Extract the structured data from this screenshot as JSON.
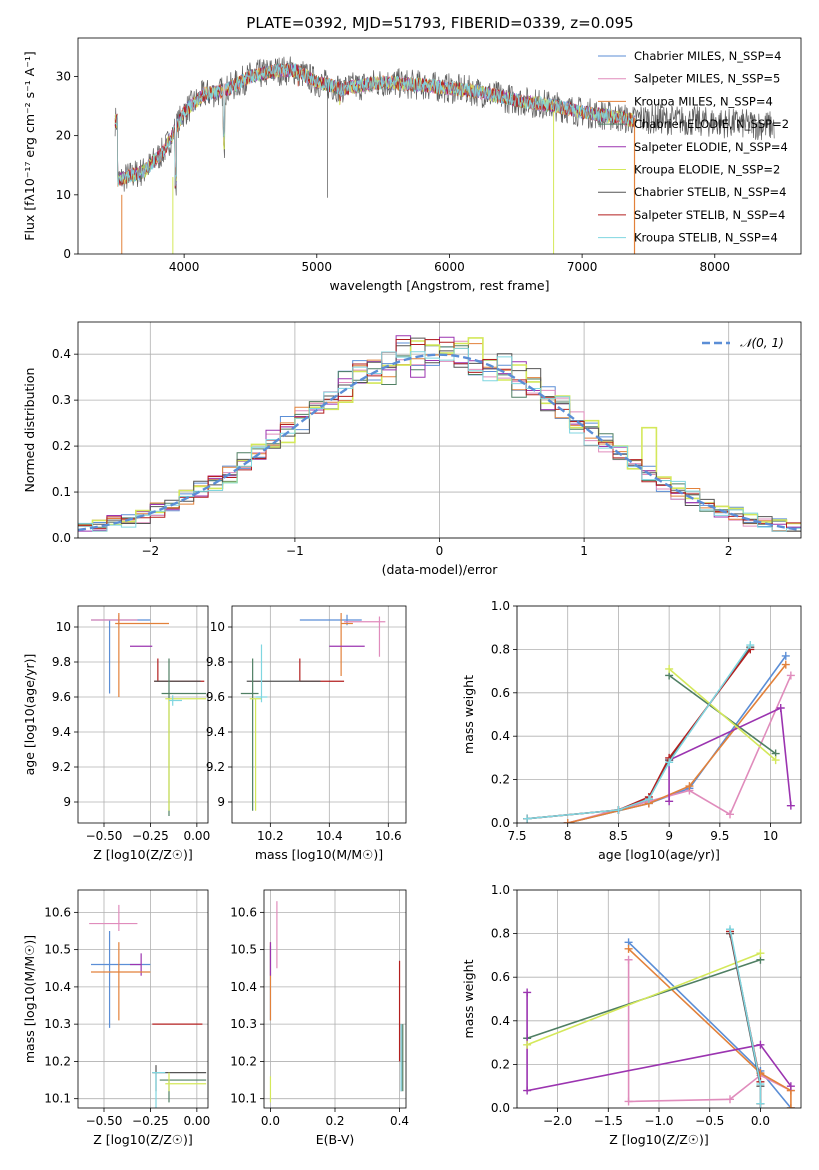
{
  "title": "PLATE=0392, MJD=51793, FIBERID=0339, z=0.095",
  "colors": {
    "Chabrier MILES": "#5b8ed6",
    "Salpeter MILES": "#e08cbc",
    "Kroupa MILES": "#e2813a",
    "Chabrier ELODIE": "#4f7f63",
    "Salpeter ELODIE": "#9b34b0",
    "Kroupa ELODIE": "#d4e85a",
    "Chabrier STELIB": "#555555",
    "Salpeter STELIB": "#b31f1f",
    "Kroupa STELIB": "#7fd6e0"
  },
  "chart_data": [
    {
      "type": "line",
      "title": "PLATE=0392, MJD=51793, FIBERID=0339, z=0.095",
      "xlabel": "wavelength [Angstrom, rest frame]",
      "ylabel": "Flux [fλ10⁻¹⁷ erg cm⁻² s⁻¹ A⁻¹]",
      "xlim": [
        3200,
        8650
      ],
      "ylim": [
        0,
        36.5
      ],
      "xticks": [
        4000,
        5000,
        6000,
        7000,
        8000
      ],
      "yticks": [
        0,
        10,
        20,
        30
      ],
      "legend_position": "top-right",
      "legend": [
        "Chabrier MILES, N_SSP=4",
        "Salpeter MILES, N_SSP=5",
        "Kroupa MILES, N_SSP=4",
        "Chabrier ELODIE, N_SSP=2",
        "Salpeter ELODIE, N_SSP=4",
        "Kroupa ELODIE, N_SSP=2",
        "Chabrier STELIB, N_SSP=4",
        "Salpeter STELIB, N_SSP=4",
        "Kroupa STELIB, N_SSP=4"
      ],
      "continuum": [
        [
          3500,
          12.5
        ],
        [
          3700,
          14
        ],
        [
          3850,
          17.5
        ],
        [
          4000,
          24
        ],
        [
          4150,
          27
        ],
        [
          4300,
          27.5
        ],
        [
          4500,
          30
        ],
        [
          4700,
          31
        ],
        [
          4850,
          31
        ],
        [
          5000,
          29
        ],
        [
          5200,
          28
        ],
        [
          5500,
          29
        ],
        [
          5800,
          28.5
        ],
        [
          6200,
          27.5
        ],
        [
          6500,
          26
        ],
        [
          6800,
          25
        ],
        [
          7000,
          24
        ],
        [
          7300,
          23
        ],
        [
          7400,
          22.5
        ]
      ],
      "absorption_lines": [
        [
          3935,
          11
        ],
        [
          4300,
          18
        ],
        [
          5175,
          26
        ],
        [
          4862,
          28.5
        ]
      ]
    },
    {
      "type": "bar",
      "xlabel": "(data-model)/error",
      "ylabel": "Normed distribution",
      "xlim": [
        -2.5,
        2.5
      ],
      "ylim": [
        0,
        0.47
      ],
      "xticks": [
        -2,
        -1,
        0,
        1,
        2
      ],
      "yticks": [
        0.0,
        0.1,
        0.2,
        0.3,
        0.4
      ],
      "legend": [
        "𝒩(0, 1)"
      ],
      "legend_position": "top-right",
      "bin_width": 0.1
    },
    {
      "type": "scatter",
      "xlabel": "Z [log10(Z/Z☉)]",
      "ylabel": "age  [log10(age/yr)]",
      "xlim": [
        -0.64,
        0.06
      ],
      "ylim": [
        8.88,
        10.12
      ],
      "xticks": [
        -0.5,
        -0.25,
        0.0
      ],
      "xticklabels": [
        "−0.50",
        "−0.25",
        "0.00"
      ],
      "yticks": [
        9.0,
        9.2,
        9.4,
        9.6,
        9.8,
        10.0
      ],
      "points": [
        {
          "model": "Chabrier MILES",
          "x": -0.47,
          "y": 10.04,
          "dx": [
            0.1,
            0.22
          ],
          "dy": [
            0.42,
            0
          ]
        },
        {
          "model": "Salpeter MILES",
          "x": -0.42,
          "y": 10.04,
          "dx": [
            0.15,
            0.1
          ],
          "dy": [
            0.03,
            0.03
          ]
        },
        {
          "model": "Kroupa MILES",
          "x": -0.42,
          "y": 10.02,
          "dx": [
            0.02,
            0.27
          ],
          "dy": [
            0.42,
            0.06
          ]
        },
        {
          "model": "Salpeter ELODIE",
          "x": -0.3,
          "y": 9.89,
          "dx": [
            0.06,
            0.06
          ],
          "dy": [
            0.0,
            0.0
          ]
        },
        {
          "model": "Salpeter STELIB",
          "x": -0.21,
          "y": 9.69,
          "dx": [
            0.02,
            0.25
          ],
          "dy": [
            0.0,
            0.13
          ]
        },
        {
          "model": "Chabrier STELIB",
          "x": -0.18,
          "y": 9.69,
          "dx": [
            0.05,
            0.2
          ],
          "dy": [
            0.0,
            0.0
          ]
        },
        {
          "model": "Chabrier ELODIE",
          "x": -0.15,
          "y": 9.62,
          "dx": [
            0.04,
            0.2
          ],
          "dy": [
            0.7,
            0.2
          ]
        },
        {
          "model": "Kroupa ELODIE",
          "x": -0.15,
          "y": 9.59,
          "dx": [
            0.02,
            0.2
          ],
          "dy": [
            0.64,
            0.0
          ]
        },
        {
          "model": "Kroupa STELIB",
          "x": -0.13,
          "y": 9.58,
          "dx": [
            0.02,
            0.05
          ],
          "dy": [
            0.03,
            0.03
          ]
        }
      ]
    },
    {
      "type": "scatter",
      "xlabel": "mass [log10(M/M☉)]",
      "ylabel": "",
      "xlim": [
        10.07,
        10.66
      ],
      "ylim": [
        8.88,
        10.12
      ],
      "xticks": [
        10.2,
        10.4,
        10.6
      ],
      "yticks": [
        9.0,
        9.2,
        9.4,
        9.6,
        9.8,
        10.0
      ],
      "points": [
        {
          "model": "Chabrier MILES",
          "x": 10.46,
          "y": 10.04,
          "dx": [
            0.16,
            0.05
          ],
          "dy": [
            0.03,
            0.03
          ]
        },
        {
          "model": "Salpeter MILES",
          "x": 10.57,
          "y": 10.03,
          "dx": [
            0.12,
            0.02
          ],
          "dy": [
            0.2,
            0.03
          ]
        },
        {
          "model": "Kroupa MILES",
          "x": 10.44,
          "y": 10.02,
          "dx": [
            0.0,
            0.04
          ],
          "dy": [
            0.3,
            0.06
          ]
        },
        {
          "model": "Salpeter ELODIE",
          "x": 10.46,
          "y": 9.89,
          "dx": [
            0.06,
            0.06
          ],
          "dy": [
            0.0,
            0.0
          ]
        },
        {
          "model": "Salpeter STELIB",
          "x": 10.3,
          "y": 9.69,
          "dx": [
            0.0,
            0.15
          ],
          "dy": [
            0.0,
            0.13
          ]
        },
        {
          "model": "Chabrier STELIB",
          "x": 10.17,
          "y": 9.69,
          "dx": [
            0.05,
            0.2
          ],
          "dy": [
            0.0,
            0.0
          ]
        },
        {
          "model": "Chabrier ELODIE",
          "x": 10.14,
          "y": 9.62,
          "dx": [
            0.04,
            0.02
          ],
          "dy": [
            0.67,
            0.2
          ]
        },
        {
          "model": "Kroupa ELODIE",
          "x": 10.15,
          "y": 9.59,
          "dx": [
            0.02,
            0.02
          ],
          "dy": [
            0.64,
            0.0
          ]
        },
        {
          "model": "Kroupa STELIB",
          "x": 10.17,
          "y": 9.6,
          "dx": [
            0.02,
            0.02
          ],
          "dy": [
            0.03,
            0.3
          ]
        }
      ]
    },
    {
      "type": "line",
      "xlabel": "age  [log10(age/yr)]",
      "ylabel": "mass weight",
      "xlim": [
        7.5,
        10.3
      ],
      "ylim": [
        0,
        1.0
      ],
      "xticks": [
        7.5,
        8.0,
        8.5,
        9.0,
        9.5,
        10.0
      ],
      "yticks": [
        0.0,
        0.2,
        0.4,
        0.6,
        0.8,
        1.0
      ],
      "series": [
        {
          "model": "Chabrier MILES",
          "x": [
            8.0,
            8.8,
            9.2,
            10.15
          ],
          "y": [
            0.0,
            0.09,
            0.16,
            0.77
          ]
        },
        {
          "model": "Salpeter MILES",
          "x": [
            8.0,
            8.8,
            9.2,
            9.6,
            10.2
          ],
          "y": [
            0.0,
            0.1,
            0.15,
            0.04,
            0.68
          ]
        },
        {
          "model": "Kroupa MILES",
          "x": [
            8.0,
            8.8,
            9.2,
            10.15
          ],
          "y": [
            0.0,
            0.09,
            0.17,
            0.73
          ]
        },
        {
          "model": "Chabrier ELODIE",
          "x": [
            9.0,
            10.05
          ],
          "y": [
            0.68,
            0.32
          ]
        },
        {
          "model": "Salpeter ELODIE",
          "x": [
            9.0,
            9.0,
            10.1,
            10.2
          ],
          "y": [
            0.1,
            0.29,
            0.53,
            0.08
          ]
        },
        {
          "model": "Kroupa ELODIE",
          "x": [
            9.0,
            10.05
          ],
          "y": [
            0.71,
            0.29
          ]
        },
        {
          "model": "Chabrier STELIB",
          "x": [
            7.6,
            8.5,
            8.8,
            9.0,
            9.8
          ],
          "y": [
            0.02,
            0.06,
            0.11,
            0.29,
            0.81
          ]
        },
        {
          "model": "Salpeter STELIB",
          "x": [
            7.6,
            8.5,
            8.8,
            9.0,
            9.8
          ],
          "y": [
            0.02,
            0.06,
            0.12,
            0.3,
            0.8
          ]
        },
        {
          "model": "Kroupa STELIB",
          "x": [
            7.6,
            8.5,
            8.8,
            9.0,
            9.8
          ],
          "y": [
            0.02,
            0.06,
            0.11,
            0.28,
            0.82
          ]
        }
      ]
    },
    {
      "type": "scatter",
      "xlabel": "Z [log10(Z/Z☉)]",
      "ylabel": "mass [log10(M/M☉)]",
      "xlim": [
        -0.64,
        0.06
      ],
      "ylim": [
        10.075,
        10.66
      ],
      "xticks": [
        -0.5,
        -0.25,
        0.0
      ],
      "xticklabels": [
        "−0.50",
        "−0.25",
        "0.00"
      ],
      "yticks": [
        10.1,
        10.2,
        10.3,
        10.4,
        10.5,
        10.6
      ],
      "points": [
        {
          "model": "Salpeter MILES",
          "x": -0.42,
          "y": 10.57,
          "dx": [
            0.16,
            0.1
          ],
          "dy": [
            0.02,
            0.05
          ]
        },
        {
          "model": "Chabrier MILES",
          "x": -0.47,
          "y": 10.46,
          "dx": [
            0.1,
            0.22
          ],
          "dy": [
            0.17,
            0.09
          ]
        },
        {
          "model": "Salpeter ELODIE",
          "x": -0.3,
          "y": 10.46,
          "dx": [
            0.06,
            0.0
          ],
          "dy": [
            0.03,
            0.03
          ]
        },
        {
          "model": "Kroupa MILES",
          "x": -0.42,
          "y": 10.44,
          "dx": [
            0.15,
            0.17
          ],
          "dy": [
            0.13,
            0.08
          ]
        },
        {
          "model": "Salpeter STELIB",
          "x": -0.22,
          "y": 10.3,
          "dx": [
            0.02,
            0.25
          ],
          "dy": [
            0.0,
            0.0
          ]
        },
        {
          "model": "Chabrier STELIB",
          "x": -0.22,
          "y": 10.17,
          "dx": [
            0.02,
            0.27
          ],
          "dy": [
            0.05,
            0.02
          ]
        },
        {
          "model": "Kroupa STELIB",
          "x": -0.22,
          "y": 10.17,
          "dx": [
            0.02,
            0.05
          ],
          "dy": [
            0.12,
            0.0
          ]
        },
        {
          "model": "Chabrier ELODIE",
          "x": -0.15,
          "y": 10.15,
          "dx": [
            0.05,
            0.2
          ],
          "dy": [
            0.06,
            0.0
          ]
        },
        {
          "model": "Kroupa ELODIE",
          "x": -0.15,
          "y": 10.14,
          "dx": [
            0.02,
            0.2
          ],
          "dy": [
            0.02,
            0.03
          ]
        }
      ]
    },
    {
      "type": "scatter",
      "xlabel": "E(B-V)",
      "ylabel": "",
      "xlim": [
        -0.02,
        0.42
      ],
      "ylim": [
        10.075,
        10.66
      ],
      "xticks": [
        0.0,
        0.2,
        0.4
      ],
      "xticklabels": [
        "0.0",
        "0.2",
        "0.4"
      ],
      "yticks": [
        10.1,
        10.2,
        10.3,
        10.4,
        10.5,
        10.6
      ],
      "points": [
        {
          "model": "Chabrier MILES",
          "x": 0.0,
          "y": 10.46,
          "dy": [
            0.15,
            0.05
          ]
        },
        {
          "model": "Salpeter MILES",
          "x": 0.02,
          "y": 10.57,
          "dy": [
            0.12,
            0.06
          ]
        },
        {
          "model": "Kroupa MILES",
          "x": 0.0,
          "y": 10.44,
          "dy": [
            0.13,
            0.08
          ]
        },
        {
          "model": "Salpeter ELODIE",
          "x": 0.0,
          "y": 10.46,
          "dy": [
            0.03,
            0.06
          ]
        },
        {
          "model": "Kroupa ELODIE",
          "x": 0.0,
          "y": 10.14,
          "dy": [
            0.05,
            0.02
          ]
        },
        {
          "model": "Salpeter STELIB",
          "x": 0.4,
          "y": 10.3,
          "dy": [
            0.1,
            0.17
          ]
        },
        {
          "model": "Chabrier STELIB",
          "x": 0.405,
          "y": 10.2,
          "dy": [
            0.08,
            0.1
          ]
        },
        {
          "model": "Kroupa STELIB",
          "x": 0.405,
          "y": 10.2,
          "dy": [
            0.08,
            0.1
          ]
        },
        {
          "model": "Chabrier ELODIE",
          "x": 0.41,
          "y": 10.2,
          "dy": [
            0.08,
            0.1
          ]
        }
      ]
    },
    {
      "type": "line",
      "xlabel": "Z [log10(Z/Z☉)]",
      "ylabel": "mass weight",
      "xlim": [
        -2.4,
        0.4
      ],
      "ylim": [
        0,
        1.0
      ],
      "xticks": [
        -2.0,
        -1.5,
        -1.0,
        -0.5,
        0.0
      ],
      "xticklabels": [
        "−2.0",
        "−1.5",
        "−1.0",
        "−0.5",
        "0.0"
      ],
      "yticks": [
        0.0,
        0.2,
        0.4,
        0.6,
        0.8,
        1.0
      ],
      "series": [
        {
          "model": "Chabrier MILES",
          "x": [
            0.3,
            0.0,
            -1.3
          ],
          "y": [
            0.0,
            0.17,
            0.76
          ]
        },
        {
          "model": "Salpeter MILES",
          "x": [
            -1.3,
            -1.3,
            -0.3,
            0.0,
            0.3
          ],
          "y": [
            0.68,
            0.03,
            0.04,
            0.15,
            0.08
          ]
        },
        {
          "model": "Kroupa MILES",
          "x": [
            0.3,
            0.3,
            0.0,
            -1.3
          ],
          "y": [
            0.0,
            0.08,
            0.16,
            0.73
          ]
        },
        {
          "model": "Chabrier ELODIE",
          "x": [
            -2.3,
            0.0
          ],
          "y": [
            0.32,
            0.68
          ]
        },
        {
          "model": "Salpeter ELODIE",
          "x": [
            -2.3,
            -2.3,
            0.0,
            0.3
          ],
          "y": [
            0.53,
            0.08,
            0.29,
            0.1
          ]
        },
        {
          "model": "Kroupa ELODIE",
          "x": [
            -2.3,
            0.0
          ],
          "y": [
            0.29,
            0.71
          ]
        },
        {
          "model": "Chabrier STELIB",
          "x": [
            -0.3,
            0.0,
            0.0
          ],
          "y": [
            0.8,
            0.1,
            0.02
          ]
        },
        {
          "model": "Salpeter STELIB",
          "x": [
            -0.3,
            0.0,
            0.0
          ],
          "y": [
            0.81,
            0.12,
            0.02
          ]
        },
        {
          "model": "Kroupa STELIB",
          "x": [
            -0.3,
            0.0,
            0.0
          ],
          "y": [
            0.82,
            0.11,
            0.02
          ]
        }
      ]
    }
  ]
}
